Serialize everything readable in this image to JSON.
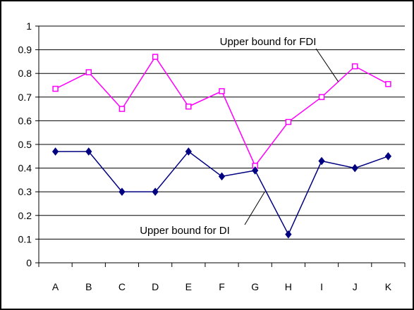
{
  "chart_data": {
    "type": "line",
    "categories": [
      "A",
      "B",
      "C",
      "D",
      "E",
      "F",
      "G",
      "H",
      "I",
      "J",
      "K"
    ],
    "ylim": [
      0,
      1
    ],
    "yticks": [
      0,
      0.1,
      0.2,
      0.3,
      0.4,
      0.5,
      0.6,
      0.7,
      0.8,
      0.9,
      1
    ],
    "ytick_labels": [
      "0",
      "0.1",
      "0.2",
      "0.3",
      "0.4",
      "0.5",
      "0.6",
      "0.7",
      "0.8",
      "0.9",
      "1"
    ],
    "grid": "horizontal",
    "legend": "none",
    "series": [
      {
        "name": "Upper bound for FDI",
        "color": "#ff00ff",
        "marker": "square",
        "values": [
          0.735,
          0.805,
          0.65,
          0.87,
          0.66,
          0.725,
          0.41,
          0.595,
          0.7,
          0.83,
          0.755
        ]
      },
      {
        "name": "Upper bound for DI",
        "color": "#000080",
        "marker": "diamond",
        "values": [
          0.47,
          0.47,
          0.3,
          0.3,
          0.47,
          0.365,
          0.39,
          0.12,
          0.43,
          0.4,
          0.45
        ]
      }
    ],
    "annotations": [
      {
        "text": "Upper bound for FDI",
        "series": 0,
        "near": "J"
      },
      {
        "text": "Upper bound for DI",
        "series": 1,
        "near": "G"
      }
    ]
  }
}
